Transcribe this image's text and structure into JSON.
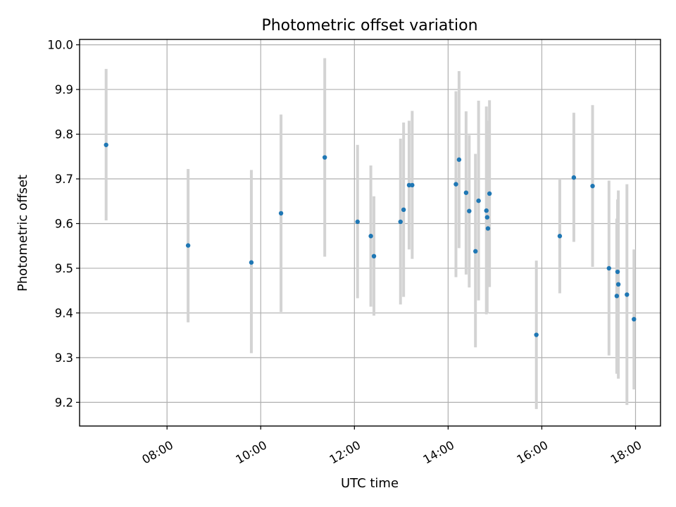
{
  "chart_data": {
    "type": "scatter",
    "title": "Photometric offset variation",
    "xlabel": "UTC time",
    "ylabel": "Photometric offset",
    "x_is_time": true,
    "xlim": [
      "06:08",
      "18:32"
    ],
    "ylim": [
      9.147,
      10.012
    ],
    "x_ticks": [
      "08:00",
      "10:00",
      "12:00",
      "14:00",
      "16:00",
      "18:00"
    ],
    "y_ticks": [
      9.2,
      9.3,
      9.4,
      9.5,
      9.6,
      9.7,
      9.8,
      9.9,
      10.0
    ],
    "y_tick_labels": [
      "9.2",
      "9.3",
      "9.4",
      "9.5",
      "9.6",
      "9.7",
      "9.8",
      "9.9",
      "10.0"
    ],
    "grid": true,
    "point_color": "#1f77b4",
    "errorbar_color": "#d3d3d3",
    "series": [
      {
        "points": [
          {
            "t": "06:42",
            "y": 9.776,
            "lo": 9.607,
            "hi": 9.946
          },
          {
            "t": "08:27",
            "y": 9.551,
            "lo": 9.379,
            "hi": 9.722
          },
          {
            "t": "09:48",
            "y": 9.513,
            "lo": 9.31,
            "hi": 9.72
          },
          {
            "t": "10:26",
            "y": 9.623,
            "lo": 9.402,
            "hi": 9.844
          },
          {
            "t": "11:22",
            "y": 9.748,
            "lo": 9.526,
            "hi": 9.97
          },
          {
            "t": "12:04",
            "y": 9.604,
            "lo": 9.433,
            "hi": 9.776
          },
          {
            "t": "12:21",
            "y": 9.572,
            "lo": 9.414,
            "hi": 9.73
          },
          {
            "t": "12:25",
            "y": 9.527,
            "lo": 9.394,
            "hi": 9.661
          },
          {
            "t": "12:59",
            "y": 9.604,
            "lo": 9.419,
            "hi": 9.79
          },
          {
            "t": "13:03",
            "y": 9.631,
            "lo": 9.436,
            "hi": 9.826
          },
          {
            "t": "13:10",
            "y": 9.686,
            "lo": 9.542,
            "hi": 9.83
          },
          {
            "t": "13:14",
            "y": 9.686,
            "lo": 9.521,
            "hi": 9.852
          },
          {
            "t": "14:10",
            "y": 9.688,
            "lo": 9.48,
            "hi": 9.896
          },
          {
            "t": "14:14",
            "y": 9.743,
            "lo": 9.545,
            "hi": 9.941
          },
          {
            "t": "14:23",
            "y": 9.669,
            "lo": 9.486,
            "hi": 9.851
          },
          {
            "t": "14:27",
            "y": 9.628,
            "lo": 9.457,
            "hi": 9.798
          },
          {
            "t": "14:35",
            "y": 9.538,
            "lo": 9.323,
            "hi": 9.756
          },
          {
            "t": "14:39",
            "y": 9.651,
            "lo": 9.428,
            "hi": 9.875
          },
          {
            "t": "14:49",
            "y": 9.629,
            "lo": 9.397,
            "hi": 9.862
          },
          {
            "t": "14:50",
            "y": 9.614,
            "lo": 9.399,
            "hi": 9.83
          },
          {
            "t": "14:51",
            "y": 9.589,
            "lo": 9.458,
            "hi": 9.721
          },
          {
            "t": "14:53",
            "y": 9.667,
            "lo": 9.458,
            "hi": 9.876
          },
          {
            "t": "15:53",
            "y": 9.351,
            "lo": 9.185,
            "hi": 9.517
          },
          {
            "t": "16:23",
            "y": 9.572,
            "lo": 9.444,
            "hi": 9.7
          },
          {
            "t": "16:41",
            "y": 9.703,
            "lo": 9.559,
            "hi": 9.848
          },
          {
            "t": "17:05",
            "y": 9.684,
            "lo": 9.503,
            "hi": 9.865
          },
          {
            "t": "17:26",
            "y": 9.5,
            "lo": 9.305,
            "hi": 9.696
          },
          {
            "t": "17:36",
            "y": 9.438,
            "lo": 9.264,
            "hi": 9.611
          },
          {
            "t": "17:37",
            "y": 9.492,
            "lo": 9.33,
            "hi": 9.654
          },
          {
            "t": "17:38",
            "y": 9.464,
            "lo": 9.253,
            "hi": 9.674
          },
          {
            "t": "17:49",
            "y": 9.441,
            "lo": 9.194,
            "hi": 9.688
          },
          {
            "t": "17:58",
            "y": 9.386,
            "lo": 9.229,
            "hi": 9.542
          }
        ]
      }
    ]
  }
}
